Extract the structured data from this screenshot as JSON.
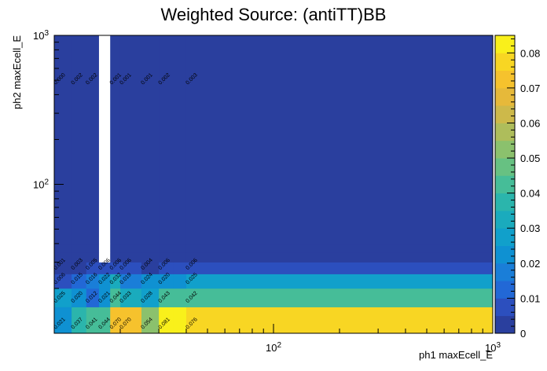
{
  "chart_data": {
    "type": "heatmap",
    "title": "Weighted Source: (antiTT)BB",
    "xlabel": "ph1 maxEcell_E",
    "ylabel": "ph2 maxEcell_E",
    "x_scale": "log",
    "y_scale": "log",
    "xlim": [
      10,
      1000
    ],
    "ylim": [
      10,
      1000
    ],
    "x_major_ticks": [
      {
        "value": 100,
        "base": "10",
        "exp": "2"
      },
      {
        "value": 1000,
        "base": "10",
        "exp": "3"
      }
    ],
    "y_major_ticks": [
      {
        "value": 100,
        "base": "10",
        "exp": "2"
      },
      {
        "value": 1000,
        "base": "10",
        "exp": "3"
      }
    ],
    "x_edges": [
      10,
      12,
      14,
      16,
      18,
      20,
      25,
      30,
      35,
      40,
      1000
    ],
    "y_edges": [
      10,
      15,
      20,
      25,
      30,
      35,
      40,
      1000
    ],
    "cells": [
      {
        "xi": 0,
        "yi": 0,
        "value": 0.021,
        "label": "0.021"
      },
      {
        "xi": 1,
        "yi": 0,
        "value": 0.037,
        "label": "0.037"
      },
      {
        "xi": 2,
        "yi": 0,
        "value": 0.041,
        "label": "0.041"
      },
      {
        "xi": 3,
        "yi": 0,
        "value": 0.044,
        "label": "0.044"
      },
      {
        "xi": 4,
        "yi": 0,
        "value": 0.07,
        "label": "0.070"
      },
      {
        "xi": 5,
        "yi": 0,
        "value": 0.07,
        "label": "0.070"
      },
      {
        "xi": 6,
        "yi": 0,
        "value": 0.054,
        "label": "0.054"
      },
      {
        "xi": 7,
        "yi": 0,
        "value": 0.081,
        "label": "0.081"
      },
      {
        "xi": 9,
        "yi": 0,
        "value": 0.076,
        "label": "0.076"
      },
      {
        "xi": 0,
        "yi": 1,
        "value": 0.025,
        "label": "0.025"
      },
      {
        "xi": 1,
        "yi": 1,
        "value": 0.02,
        "label": "0.020"
      },
      {
        "xi": 2,
        "yi": 1,
        "value": 0.012,
        "label": "0.012"
      },
      {
        "xi": 3,
        "yi": 1,
        "value": 0.021,
        "label": "0.021"
      },
      {
        "xi": 4,
        "yi": 1,
        "value": 0.044,
        "label": "0.044"
      },
      {
        "xi": 5,
        "yi": 1,
        "value": 0.033,
        "label": "0.033"
      },
      {
        "xi": 6,
        "yi": 1,
        "value": 0.028,
        "label": "0.028"
      },
      {
        "xi": 7,
        "yi": 1,
        "value": 0.043,
        "label": "0.043"
      },
      {
        "xi": 9,
        "yi": 1,
        "value": 0.042,
        "label": "0.042"
      },
      {
        "xi": 0,
        "yi": 2,
        "value": 0.006,
        "label": "0.006"
      },
      {
        "xi": 1,
        "yi": 2,
        "value": 0.015,
        "label": "0.015"
      },
      {
        "xi": 2,
        "yi": 2,
        "value": 0.016,
        "label": "0.016"
      },
      {
        "xi": 3,
        "yi": 2,
        "value": 0.022,
        "label": "0.022"
      },
      {
        "xi": 4,
        "yi": 2,
        "value": 0.032,
        "label": "0.032"
      },
      {
        "xi": 5,
        "yi": 2,
        "value": 0.019,
        "label": "0.019"
      },
      {
        "xi": 6,
        "yi": 2,
        "value": 0.024,
        "label": "0.024"
      },
      {
        "xi": 7,
        "yi": 2,
        "value": 0.02,
        "label": "0.020"
      },
      {
        "xi": 9,
        "yi": 2,
        "value": 0.025,
        "label": "0.025"
      },
      {
        "xi": 0,
        "yi": 3,
        "value": 0.001,
        "label": "0.001"
      },
      {
        "xi": 1,
        "yi": 3,
        "value": 0.003,
        "label": "0.003"
      },
      {
        "xi": 2,
        "yi": 3,
        "value": 0.005,
        "label": "0.005"
      },
      {
        "xi": 3,
        "yi": 3,
        "value": 0.006,
        "label": "0.006"
      },
      {
        "xi": 4,
        "yi": 3,
        "value": 0.006,
        "label": "0.006"
      },
      {
        "xi": 5,
        "yi": 3,
        "value": 0.006,
        "label": "0.006"
      },
      {
        "xi": 6,
        "yi": 3,
        "value": 0.004,
        "label": "0.004"
      },
      {
        "xi": 7,
        "yi": 3,
        "value": 0.006,
        "label": "0.006"
      },
      {
        "xi": 9,
        "yi": 3,
        "value": 0.006,
        "label": "0.006"
      },
      {
        "xi": 0,
        "yi": 6,
        "value": 0.0,
        "label": "0.000"
      },
      {
        "xi": 1,
        "yi": 6,
        "value": 0.002,
        "label": "0.002"
      },
      {
        "xi": 2,
        "yi": 6,
        "value": 0.002,
        "label": "0.002"
      },
      {
        "xi": 4,
        "yi": 6,
        "value": 0.001,
        "label": "0.001"
      },
      {
        "xi": 5,
        "yi": 6,
        "value": 0.001,
        "label": "0.001"
      },
      {
        "xi": 6,
        "yi": 6,
        "value": 0.001,
        "label": "0.001"
      },
      {
        "xi": 7,
        "yi": 6,
        "value": 0.002,
        "label": "0.002"
      },
      {
        "xi": 9,
        "yi": 6,
        "value": 0.003,
        "label": "0.003"
      }
    ],
    "empty_cells": [
      {
        "xi": 3,
        "yi": 4
      },
      {
        "xi": 3,
        "yi": 5
      },
      {
        "xi": 3,
        "yi": 6
      }
    ],
    "colorbar": {
      "min": 0,
      "max": 0.085,
      "ticks": [
        {
          "value": 0,
          "label": "0"
        },
        {
          "value": 0.01,
          "label": "0.01"
        },
        {
          "value": 0.02,
          "label": "0.02"
        },
        {
          "value": 0.03,
          "label": "0.03"
        },
        {
          "value": 0.04,
          "label": "0.04"
        },
        {
          "value": 0.05,
          "label": "0.05"
        },
        {
          "value": 0.06,
          "label": "0.06"
        },
        {
          "value": 0.07,
          "label": "0.07"
        },
        {
          "value": 0.08,
          "label": "0.08"
        }
      ],
      "palette": [
        "#2a3f9e",
        "#2c4fbe",
        "#2268d6",
        "#1a7ed8",
        "#0f91d2",
        "#11a0cb",
        "#1aabbd",
        "#2bb5ac",
        "#46bd98",
        "#67c182",
        "#8bc16d",
        "#aebd5b",
        "#cdb94a",
        "#e6b93a",
        "#f6c22d",
        "#f8d623",
        "#f9f01b"
      ]
    }
  }
}
